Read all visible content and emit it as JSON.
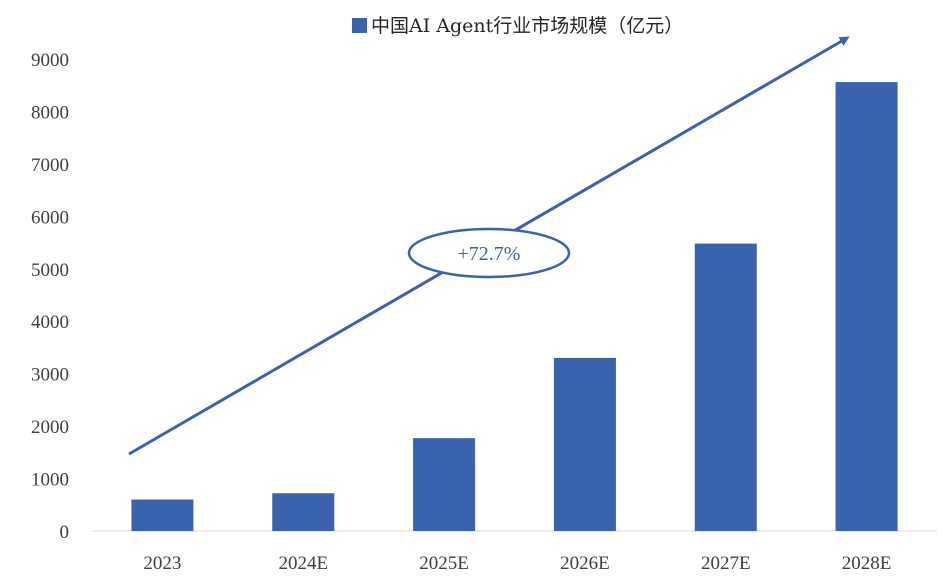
{
  "chart_data": {
    "type": "bar",
    "title": "",
    "xlabel": "",
    "ylabel": "",
    "categories": [
      "2023",
      "2024E",
      "2025E",
      "2026E",
      "2027E",
      "2028E"
    ],
    "series": [
      {
        "name": "中国AI Agent行业市场规模（亿元）",
        "values": [
          600,
          720,
          1770,
          3300,
          5480,
          8560
        ],
        "color": "#3a62ad"
      }
    ],
    "ylim": [
      0,
      9000
    ],
    "yticks": [
      0,
      1000,
      2000,
      3000,
      4000,
      5000,
      6000,
      7000,
      8000,
      9000
    ],
    "grid": false,
    "legend": {
      "position": "top",
      "label": "中国AI Agent行业市场规模（亿元）"
    },
    "annotations": [
      {
        "type": "trend-arrow",
        "text": "+72.7%",
        "color": "#3a62ad"
      }
    ]
  }
}
